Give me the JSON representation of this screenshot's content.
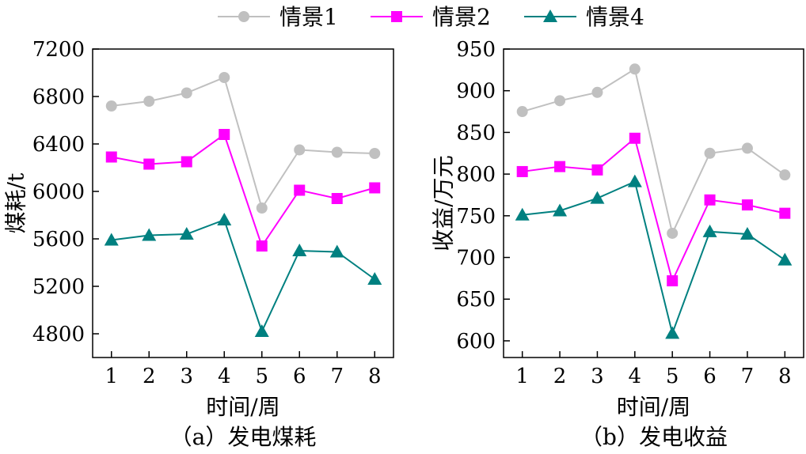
{
  "legend": [
    {
      "name": "情景1",
      "color": "#c0c0c0",
      "marker": "circle"
    },
    {
      "name": "情景2",
      "color": "#ff00ff",
      "marker": "square"
    },
    {
      "name": "情景4",
      "color": "#008080",
      "marker": "triangle"
    }
  ],
  "chart_data": [
    {
      "type": "line",
      "caption": "（a）发电煤耗",
      "xlabel": "时间/周",
      "ylabel": "煤耗/t",
      "x": [
        1,
        2,
        3,
        4,
        5,
        6,
        7,
        8
      ],
      "xticks": [
        "1",
        "2",
        "3",
        "4",
        "5",
        "6",
        "7",
        "8"
      ],
      "xlim": [
        0.5,
        8.5
      ],
      "ylim": [
        4600,
        7200
      ],
      "yticks": [
        4800,
        5200,
        5600,
        6000,
        6400,
        6800,
        7200
      ],
      "grid": false,
      "series": [
        {
          "name": "情景1",
          "values": [
            6720,
            6760,
            6830,
            6960,
            5860,
            6350,
            6330,
            6320
          ]
        },
        {
          "name": "情景2",
          "values": [
            6290,
            6230,
            6250,
            6480,
            5540,
            6010,
            5940,
            6030
          ]
        },
        {
          "name": "情景4",
          "values": [
            5590,
            5630,
            5640,
            5760,
            4820,
            5500,
            5490,
            5260
          ]
        }
      ]
    },
    {
      "type": "line",
      "caption": "（b）发电收益",
      "xlabel": "时间/周",
      "ylabel": "收益/万元",
      "x": [
        1,
        2,
        3,
        4,
        5,
        6,
        7,
        8
      ],
      "xticks": [
        "1",
        "2",
        "3",
        "4",
        "5",
        "6",
        "7",
        "8"
      ],
      "xlim": [
        0.5,
        8.5
      ],
      "ylim": [
        580,
        950
      ],
      "yticks": [
        600,
        650,
        700,
        750,
        800,
        850,
        900,
        950
      ],
      "grid": false,
      "series": [
        {
          "name": "情景1",
          "values": [
            875,
            888,
            898,
            926,
            729,
            825,
            831,
            799
          ]
        },
        {
          "name": "情景2",
          "values": [
            803,
            809,
            805,
            843,
            672,
            769,
            763,
            753
          ]
        },
        {
          "name": "情景4",
          "values": [
            751,
            756,
            771,
            791,
            609,
            731,
            728,
            697
          ]
        }
      ]
    }
  ]
}
